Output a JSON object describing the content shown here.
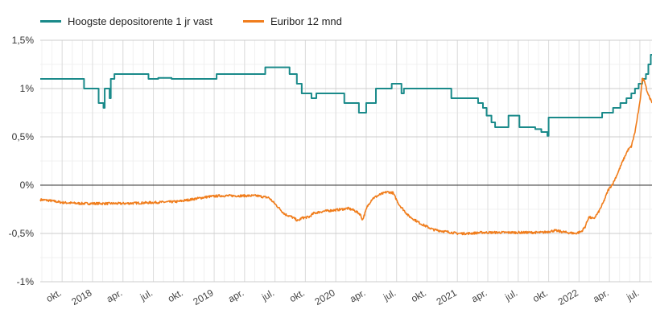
{
  "chart_data": {
    "type": "line",
    "title": "",
    "xlabel": "",
    "ylabel": "",
    "ylim": [
      -1,
      1.5
    ],
    "y_ticks": [
      "1,5%",
      "1%",
      "0,5%",
      "0%",
      "-0,5%",
      "-1%"
    ],
    "y_tick_values": [
      1.5,
      1,
      0.5,
      0,
      -0.5,
      -1
    ],
    "xlim": [
      2017.57,
      2022.6
    ],
    "x_ticks": [
      {
        "label": "okt.",
        "x": 2017.75
      },
      {
        "label": "2018",
        "x": 2018.0
      },
      {
        "label": "apr.",
        "x": 2018.25
      },
      {
        "label": "jul.",
        "x": 2018.5
      },
      {
        "label": "okt.",
        "x": 2018.75
      },
      {
        "label": "2019",
        "x": 2019.0
      },
      {
        "label": "apr.",
        "x": 2019.25
      },
      {
        "label": "jul.",
        "x": 2019.5
      },
      {
        "label": "okt.",
        "x": 2019.75
      },
      {
        "label": "2020",
        "x": 2020.0
      },
      {
        "label": "apr.",
        "x": 2020.25
      },
      {
        "label": "jul.",
        "x": 2020.5
      },
      {
        "label": "okt.",
        "x": 2020.75
      },
      {
        "label": "2021",
        "x": 2021.0
      },
      {
        "label": "apr.",
        "x": 2021.25
      },
      {
        "label": "jul.",
        "x": 2021.5
      },
      {
        "label": "okt.",
        "x": 2021.75
      },
      {
        "label": "2022",
        "x": 2022.0
      },
      {
        "label": "apr.",
        "x": 2022.25
      },
      {
        "label": "jul.",
        "x": 2022.5
      }
    ],
    "grid": true,
    "legend_position": "top-left",
    "series": [
      {
        "name": "Hoogste depositorente 1 jr vast",
        "color": "#1a8a8a",
        "step": true,
        "points": [
          [
            2017.57,
            1.1
          ],
          [
            2017.93,
            1.0
          ],
          [
            2018.05,
            0.85
          ],
          [
            2018.09,
            0.8
          ],
          [
            2018.1,
            1.0
          ],
          [
            2018.14,
            0.9
          ],
          [
            2018.15,
            1.1
          ],
          [
            2018.18,
            1.15
          ],
          [
            2018.46,
            1.1
          ],
          [
            2018.54,
            1.11
          ],
          [
            2018.65,
            1.1
          ],
          [
            2019.02,
            1.15
          ],
          [
            2019.42,
            1.22
          ],
          [
            2019.62,
            1.15
          ],
          [
            2019.68,
            1.05
          ],
          [
            2019.72,
            0.95
          ],
          [
            2019.8,
            0.9
          ],
          [
            2019.84,
            0.95
          ],
          [
            2020.07,
            0.85
          ],
          [
            2020.19,
            0.75
          ],
          [
            2020.25,
            0.85
          ],
          [
            2020.33,
            1.0
          ],
          [
            2020.46,
            1.05
          ],
          [
            2020.54,
            0.95
          ],
          [
            2020.56,
            1.0
          ],
          [
            2020.95,
            0.9
          ],
          [
            2021.17,
            0.85
          ],
          [
            2021.21,
            0.8
          ],
          [
            2021.24,
            0.72
          ],
          [
            2021.28,
            0.65
          ],
          [
            2021.31,
            0.6
          ],
          [
            2021.42,
            0.72
          ],
          [
            2021.51,
            0.6
          ],
          [
            2021.64,
            0.58
          ],
          [
            2021.69,
            0.55
          ],
          [
            2021.74,
            0.51
          ],
          [
            2021.75,
            0.7
          ],
          [
            2022.19,
            0.75
          ],
          [
            2022.28,
            0.8
          ],
          [
            2022.34,
            0.85
          ],
          [
            2022.39,
            0.9
          ],
          [
            2022.43,
            0.95
          ],
          [
            2022.46,
            1.0
          ],
          [
            2022.49,
            1.05
          ],
          [
            2022.52,
            1.1
          ],
          [
            2022.55,
            1.15
          ],
          [
            2022.57,
            1.25
          ],
          [
            2022.59,
            1.35
          ],
          [
            2022.6,
            1.35
          ]
        ]
      },
      {
        "name": "Euribor 12 mnd",
        "color": "#f07d1c",
        "step": false,
        "noise": 0.012,
        "points": [
          [
            2017.57,
            -0.15
          ],
          [
            2017.65,
            -0.16
          ],
          [
            2017.75,
            -0.18
          ],
          [
            2017.9,
            -0.19
          ],
          [
            2018.0,
            -0.19
          ],
          [
            2018.25,
            -0.19
          ],
          [
            2018.5,
            -0.18
          ],
          [
            2018.7,
            -0.17
          ],
          [
            2018.85,
            -0.14
          ],
          [
            2018.95,
            -0.12
          ],
          [
            2019.05,
            -0.11
          ],
          [
            2019.2,
            -0.11
          ],
          [
            2019.35,
            -0.11
          ],
          [
            2019.45,
            -0.13
          ],
          [
            2019.52,
            -0.22
          ],
          [
            2019.58,
            -0.3
          ],
          [
            2019.64,
            -0.33
          ],
          [
            2019.69,
            -0.37
          ],
          [
            2019.72,
            -0.34
          ],
          [
            2019.78,
            -0.33
          ],
          [
            2019.82,
            -0.29
          ],
          [
            2019.9,
            -0.27
          ],
          [
            2019.98,
            -0.26
          ],
          [
            2020.05,
            -0.25
          ],
          [
            2020.1,
            -0.24
          ],
          [
            2020.15,
            -0.26
          ],
          [
            2020.2,
            -0.3
          ],
          [
            2020.22,
            -0.36
          ],
          [
            2020.26,
            -0.22
          ],
          [
            2020.3,
            -0.14
          ],
          [
            2020.36,
            -0.1
          ],
          [
            2020.42,
            -0.07
          ],
          [
            2020.47,
            -0.08
          ],
          [
            2020.52,
            -0.2
          ],
          [
            2020.6,
            -0.32
          ],
          [
            2020.7,
            -0.4
          ],
          [
            2020.8,
            -0.46
          ],
          [
            2020.9,
            -0.48
          ],
          [
            2021.0,
            -0.5
          ],
          [
            2021.1,
            -0.5
          ],
          [
            2021.2,
            -0.49
          ],
          [
            2021.3,
            -0.49
          ],
          [
            2021.4,
            -0.49
          ],
          [
            2021.5,
            -0.49
          ],
          [
            2021.6,
            -0.49
          ],
          [
            2021.7,
            -0.49
          ],
          [
            2021.8,
            -0.47
          ],
          [
            2021.85,
            -0.48
          ],
          [
            2021.9,
            -0.49
          ],
          [
            2021.97,
            -0.5
          ],
          [
            2022.02,
            -0.48
          ],
          [
            2022.05,
            -0.43
          ],
          [
            2022.08,
            -0.33
          ],
          [
            2022.12,
            -0.35
          ],
          [
            2022.16,
            -0.28
          ],
          [
            2022.2,
            -0.18
          ],
          [
            2022.24,
            -0.05
          ],
          [
            2022.28,
            0.02
          ],
          [
            2022.32,
            0.13
          ],
          [
            2022.36,
            0.25
          ],
          [
            2022.4,
            0.36
          ],
          [
            2022.43,
            0.4
          ],
          [
            2022.46,
            0.55
          ],
          [
            2022.48,
            0.7
          ],
          [
            2022.5,
            0.85
          ],
          [
            2022.52,
            1.1
          ],
          [
            2022.54,
            1.08
          ],
          [
            2022.56,
            0.97
          ],
          [
            2022.58,
            0.91
          ],
          [
            2022.6,
            0.85
          ]
        ]
      }
    ]
  }
}
